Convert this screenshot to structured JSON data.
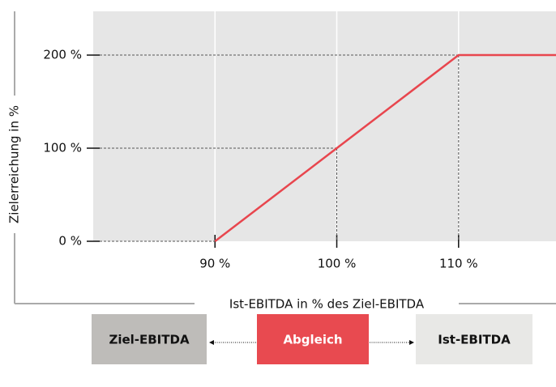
{
  "chart_data": {
    "type": "line",
    "x_label": "Ist-EBITDA in % des Ziel-EBITDA",
    "y_label": "Zielerreichung in %",
    "series": [
      {
        "color": "#e8464e",
        "x": [
          90,
          100,
          110,
          118
        ],
        "values": [
          0,
          100,
          200,
          200
        ]
      }
    ],
    "xlim": [
      80,
      118
    ],
    "ylim": [
      0,
      247
    ],
    "xticks": [
      {
        "value": 90,
        "label": "90 %"
      },
      {
        "value": 100,
        "label": "100 %"
      },
      {
        "value": 110,
        "label": "110 %"
      }
    ],
    "yticks": [
      {
        "value": 0,
        "label": "0 %"
      },
      {
        "value": 100,
        "label": "100 %"
      },
      {
        "value": 200,
        "label": "200 %"
      }
    ],
    "grid": true
  },
  "diagram": {
    "boxes": [
      {
        "label": "Ziel-EBITDA",
        "color": "#bebcb9"
      },
      {
        "label": "Abgleich",
        "color": "#e84a50"
      },
      {
        "label": "Ist-EBITDA",
        "color": "#e8e8e6"
      }
    ]
  }
}
